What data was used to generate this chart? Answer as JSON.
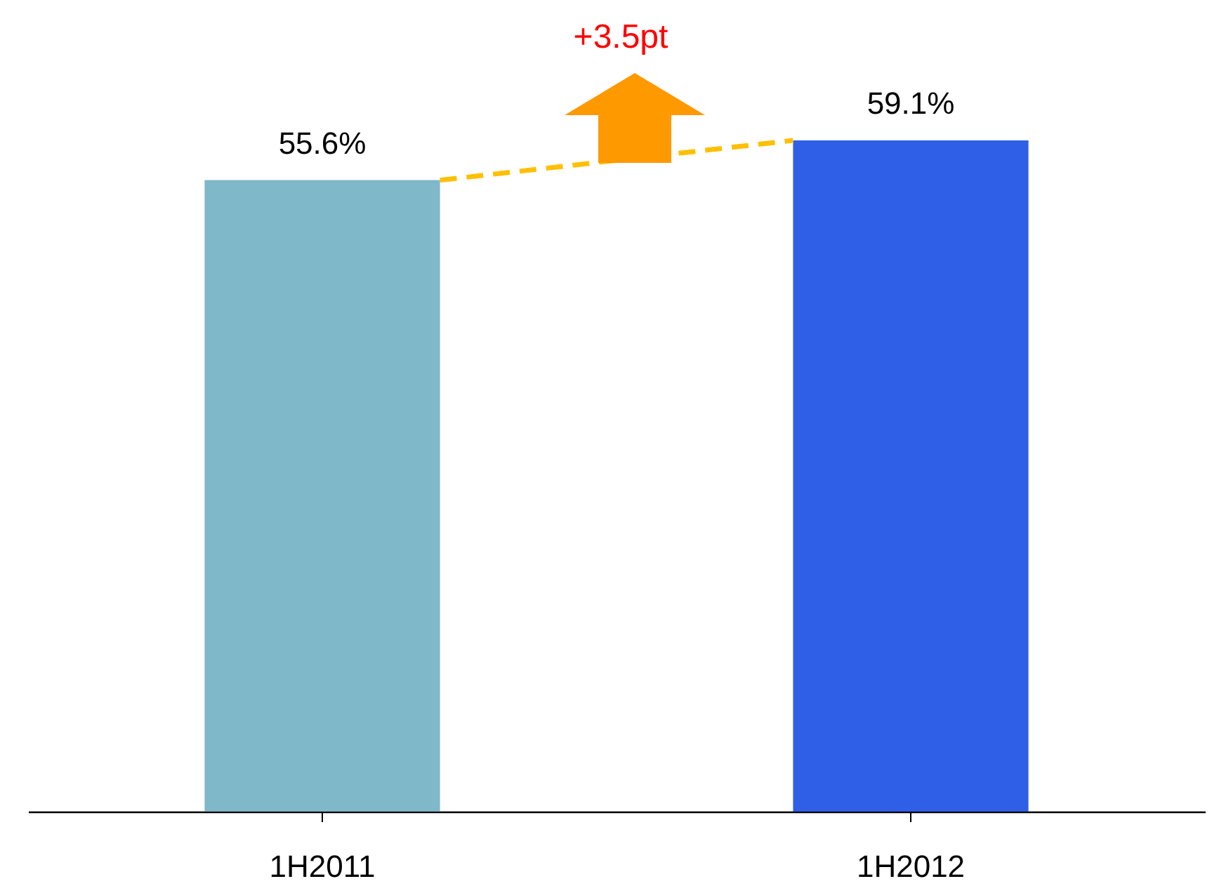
{
  "chart_data": {
    "type": "bar",
    "categories": [
      "1H2011",
      "1H2012"
    ],
    "values": [
      55.6,
      59.1
    ],
    "colors": [
      "#7fb8c8",
      "#2f5fe6"
    ],
    "value_labels": [
      "55.6%",
      "59.1%"
    ],
    "tick_labels": "x",
    "grid": false,
    "legend": false,
    "annotations": [
      "+3.5pt"
    ]
  }
}
